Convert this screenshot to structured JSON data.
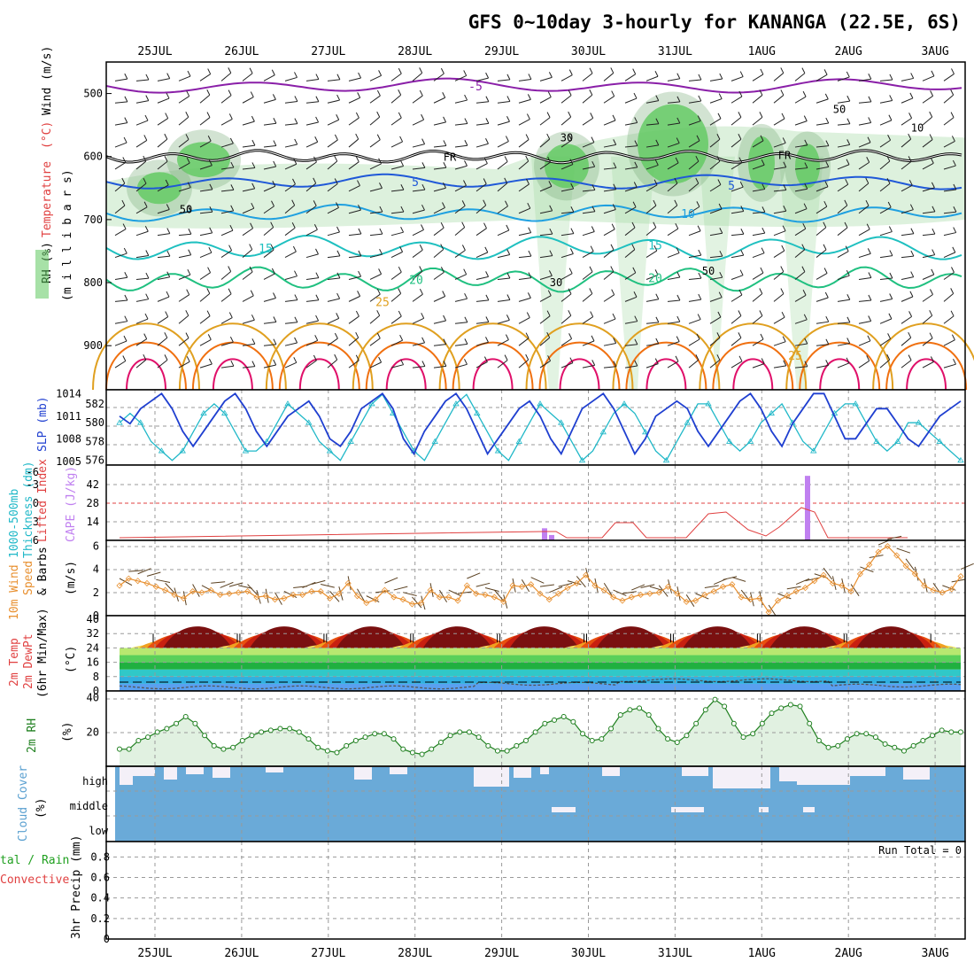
{
  "title": "GFS 0~10day 3-hourly for KANANGA (22.5E, 6S)",
  "dates": [
    "25JUL",
    "26JUL",
    "27JUL",
    "28JUL",
    "29JUL",
    "30JUL",
    "31JUL",
    "1AUG",
    "2AUG",
    "3AUG"
  ],
  "colors": {
    "rh_green": "#9fd69f",
    "rh_dark": "#5fc95f",
    "temp_purple": "#8a1fa8",
    "temp_blue": "#1f58d8",
    "temp_lightblue": "#1fa0e0",
    "temp_teal": "#1fc0c0",
    "temp_green": "#20c080",
    "temp_gold": "#e0a020",
    "temp_orange": "#f07010",
    "temp_magenta": "#e0106a",
    "slp": "#1f3fd0",
    "thickness": "#20b8c8",
    "cape": "#c080f0",
    "lifted": "#e04040",
    "wind": "#e89030",
    "barb": "#5a4020",
    "cloud": "#6aaad8",
    "cloud_clear": "#f4f0f8",
    "rh2m": "#208020"
  },
  "panels": {
    "upper": {
      "ylabel_rh": "RH (%)",
      "ylabel_temp": "Temperature",
      "ylabel_temp_unit": "(°C)",
      "ylabel_wind": "Wind (m/s)",
      "ylabel_p": "(m i l l i b a r s)",
      "yticks": [
        "500",
        "600",
        "700",
        "800",
        "900"
      ],
      "contour_labels": {
        "t_m5": "-5",
        "fr": "FR",
        "t5": "5",
        "t10": "10",
        "t15": "15",
        "t20": "20",
        "t25": "25",
        "rh30": "30",
        "rh50": "50",
        "rh10": "10"
      }
    },
    "slp": {
      "ylabel_thick": "1000-500mb",
      "ylabel_thick2": "Thickness (dm)",
      "ylabel_slp": "SLP (mb)",
      "left_ticks": [
        "582",
        "580",
        "578",
        "576"
      ],
      "right_ticks": [
        "1014",
        "1011",
        "1008",
        "1005"
      ]
    },
    "cape": {
      "ylabel_li": "Lifted Index",
      "ylabel_cape": "CAPE (J/kg)",
      "left_ticks": [
        "-6",
        "-3",
        "0",
        "3",
        "6"
      ],
      "right_ticks": [
        "42",
        "28",
        "14"
      ]
    },
    "wind10": {
      "ylabel1": "10m Wind",
      "ylabel2": "Speed",
      "ylabel3": "& Barbs",
      "unit": "(m/s)",
      "ticks": [
        "6",
        "4",
        "2",
        "0"
      ]
    },
    "temp2m": {
      "ylabel1": "2m Temp",
      "ylabel2": "2m DewPt",
      "ylabel3": "(6hr Min/Max)",
      "unit": "(°C)",
      "ticks": [
        "40",
        "32",
        "24",
        "16",
        "8",
        "0"
      ]
    },
    "rh2m": {
      "ylabel": "2m RH",
      "unit": "(%)",
      "ticks": [
        "40",
        "20"
      ]
    },
    "cloud": {
      "ylabel": "Cloud Cover",
      "unit": "(%)",
      "levels": [
        "high",
        "middle",
        "low"
      ]
    },
    "precip": {
      "ylabel1": "tal / Rain",
      "ylabel2": "Convective",
      "ylabel3": "3hr Precip (mm)",
      "run_total": "Run Total = 0",
      "ticks": [
        "0.8",
        "0.6",
        "0.4",
        "0.2",
        "0"
      ]
    }
  },
  "chart_data": [
    {
      "type": "line",
      "name": "SLP (mb)",
      "x_unit": "3-hourly steps from 24JUL 12Z",
      "ylim": [
        1005,
        1014
      ],
      "values": [
        1011,
        1010,
        1012,
        1013,
        1014,
        1012,
        1009,
        1007,
        1009,
        1011,
        1013,
        1014,
        1012,
        1009,
        1007,
        1009,
        1011,
        1012,
        1013,
        1011,
        1008,
        1007,
        1009,
        1012,
        1013,
        1014,
        1012,
        1008,
        1006,
        1009,
        1011,
        1013,
        1014,
        1012,
        1009,
        1006,
        1008,
        1010,
        1012,
        1013,
        1011,
        1008,
        1006,
        1009,
        1012,
        1013,
        1014,
        1012,
        1009,
        1006,
        1008,
        1011,
        1012,
        1013,
        1012,
        1009,
        1007,
        1009,
        1011,
        1013,
        1014,
        1012,
        1009,
        1007,
        1010,
        1012,
        1014,
        1014,
        1011,
        1008,
        1008,
        1010,
        1012,
        1012,
        1010,
        1008,
        1007,
        1009,
        1011,
        1012,
        1013
      ]
    },
    {
      "type": "line",
      "name": "Thickness (dm)",
      "ylim": [
        576,
        582
      ],
      "values": [
        580,
        581,
        580,
        578,
        577,
        576,
        577,
        579,
        581,
        582,
        581,
        579,
        577,
        577,
        578,
        580,
        582,
        581,
        580,
        578,
        577,
        576,
        578,
        580,
        582,
        583,
        581,
        579,
        577,
        576,
        578,
        580,
        582,
        583,
        581,
        579,
        577,
        576,
        578,
        580,
        582,
        581,
        580,
        578,
        576,
        577,
        579,
        581,
        582,
        581,
        579,
        577,
        576,
        578,
        580,
        582,
        582,
        580,
        578,
        577,
        578,
        580,
        581,
        582,
        580,
        578,
        577,
        579,
        581,
        582,
        582,
        580,
        578,
        577,
        578,
        580,
        580,
        579,
        578,
        577,
        576
      ]
    },
    {
      "type": "bar",
      "name": "CAPE (J/kg)",
      "x_days": [
        5.0,
        5.083,
        8.0
      ],
      "values": [
        9,
        4,
        48
      ]
    },
    {
      "type": "line",
      "name": "10m Wind Speed (m/s)",
      "ylim": [
        0,
        6
      ],
      "values": [
        2.6,
        3.2,
        3.0,
        2.8,
        2.5,
        2.2,
        1.8,
        1.5,
        2.1,
        2.0,
        2.2,
        1.8,
        1.9,
        2.0,
        2.1,
        1.6,
        1.7,
        1.4,
        1.5,
        1.8,
        1.8,
        2.1,
        2.1,
        1.5,
        1.9,
        2.8,
        1.7,
        1.1,
        1.4,
        2.2,
        1.6,
        1.4,
        1.0,
        1.1,
        2.2,
        1.6,
        1.6,
        1.3,
        2.6,
        1.9,
        1.8,
        1.6,
        1.2,
        2.6,
        2.5,
        2.7,
        1.9,
        1.4,
        1.9,
        2.4,
        2.8,
        3.5,
        2.6,
        2.2,
        1.6,
        1.3,
        1.6,
        1.8,
        1.9,
        2.0,
        2.5,
        1.9,
        1.2,
        1.3,
        1.8,
        2.1,
        2.5,
        2.7,
        1.6,
        1.4,
        1.5,
        0.3,
        1.3,
        1.7,
        2.1,
        2.4,
        3.0,
        3.5,
        2.8,
        2.6,
        2.1,
        3.6,
        4.4,
        5.5,
        6.0,
        5.2,
        4.3,
        3.6,
        2.6,
        2.2,
        2.0,
        2.3,
        3.4
      ]
    },
    {
      "type": "area",
      "name": "2m Temp (°C)",
      "ylim": [
        0,
        40
      ],
      "values_max_daily": [
        38,
        38,
        38,
        38,
        38,
        38,
        38,
        38,
        38
      ],
      "values_min_daily": [
        24,
        24,
        24,
        24,
        24,
        24,
        24,
        24,
        24
      ]
    },
    {
      "type": "line",
      "name": "2m RH (%)",
      "ylim": [
        0,
        40
      ],
      "values": [
        10,
        10,
        15,
        17,
        20,
        22,
        25,
        29,
        25,
        18,
        12,
        10,
        11,
        15,
        18,
        20,
        21,
        22,
        22,
        20,
        16,
        11,
        9,
        8,
        12,
        15,
        17,
        19,
        19,
        16,
        10,
        8,
        7,
        10,
        14,
        18,
        20,
        20,
        17,
        12,
        9,
        9,
        12,
        15,
        20,
        25,
        27,
        29,
        26,
        19,
        15,
        16,
        22,
        30,
        33,
        34,
        30,
        22,
        16,
        14,
        18,
        25,
        33,
        39,
        35,
        25,
        17,
        19,
        25,
        31,
        34,
        36,
        35,
        25,
        15,
        11,
        12,
        16,
        19,
        19,
        17,
        13,
        11,
        9,
        12,
        15,
        18,
        21,
        20,
        20
      ]
    }
  ]
}
